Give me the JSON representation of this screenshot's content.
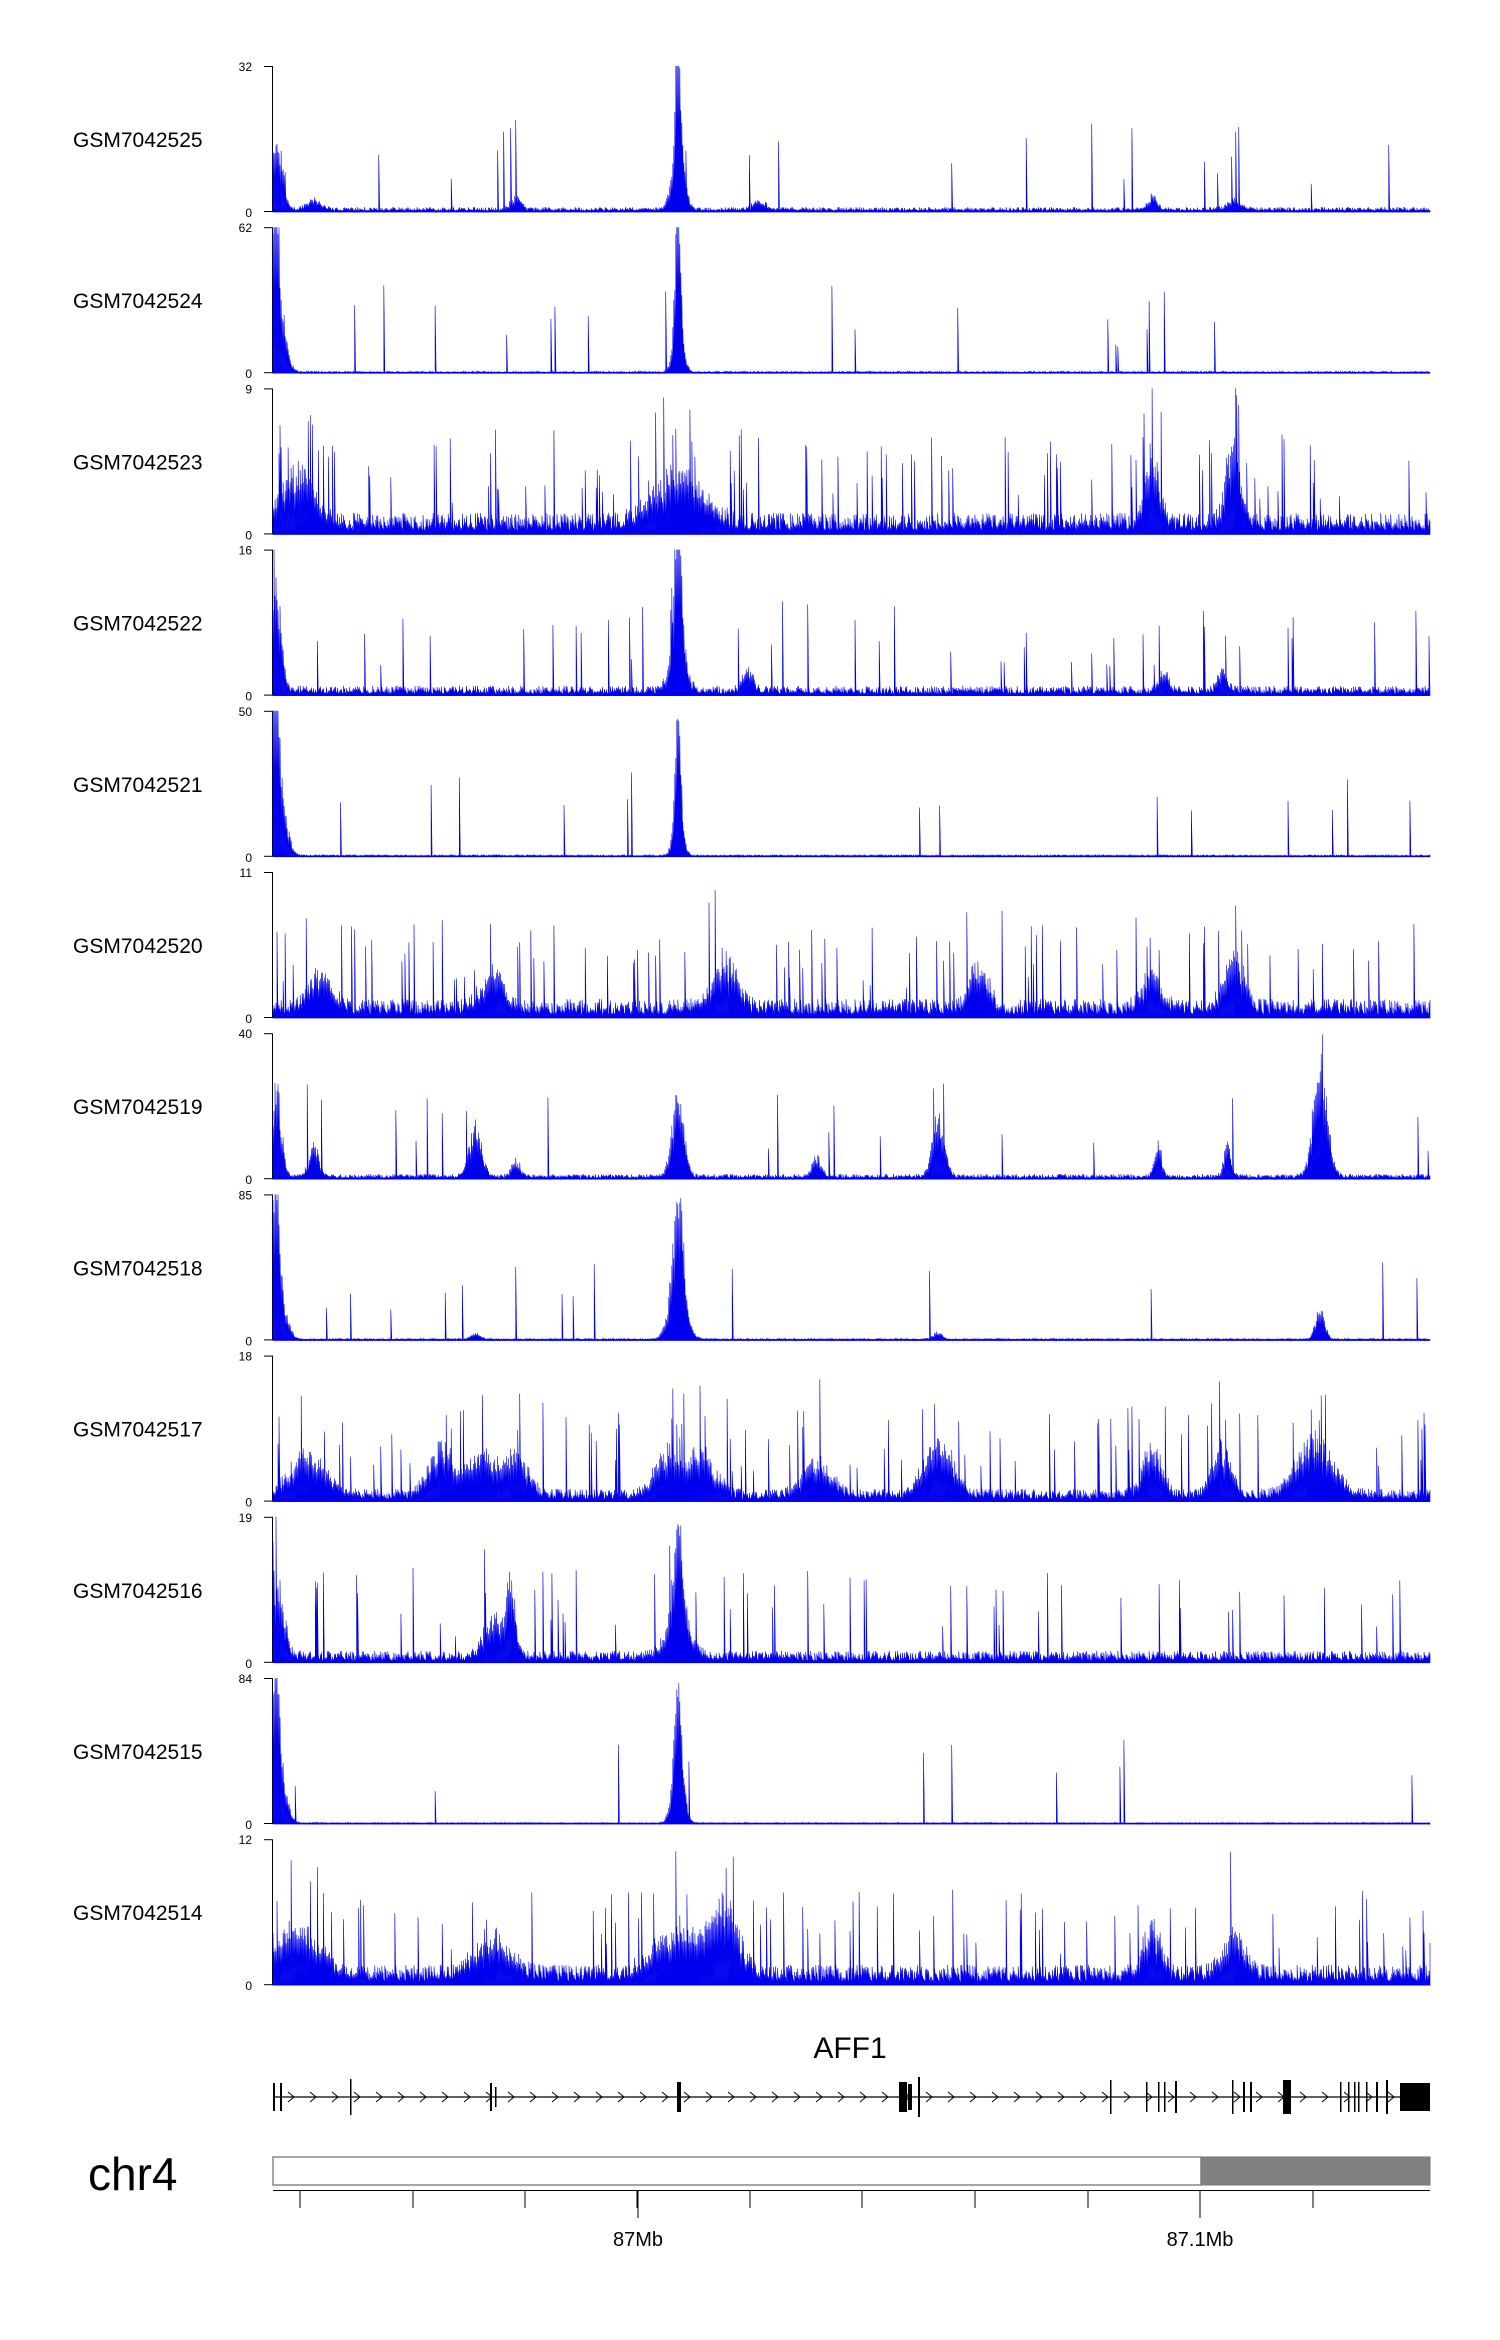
{
  "chart_data": {
    "type": "area",
    "colors": {
      "signal": "#0000ee",
      "gene": "#000000",
      "ideogram_band": "#808080"
    },
    "tracks": [
      {
        "name": "GSM7042525",
        "ymax": 32,
        "ymin": 0,
        "peaks": [
          [
            0.0,
            7.0,
            0.004
          ],
          [
            0.005,
            12.0,
            0.004
          ],
          [
            0.035,
            2.0,
            0.006
          ],
          [
            0.35,
            31.0,
            0.002
          ],
          [
            0.35,
            14.0,
            0.005
          ],
          [
            0.21,
            3.0,
            0.004
          ],
          [
            0.42,
            2.0,
            0.005
          ],
          [
            0.76,
            3.0,
            0.004
          ],
          [
            0.83,
            2.0,
            0.006
          ]
        ],
        "noise": 0.9,
        "spike": 0.015
      },
      {
        "name": "GSM7042524",
        "ymax": 62,
        "ymin": 0,
        "peaks": [
          [
            0.002,
            55.0,
            0.003
          ],
          [
            0.004,
            30.0,
            0.006
          ],
          [
            0.35,
            56.0,
            0.002
          ],
          [
            0.35,
            28.0,
            0.004
          ]
        ],
        "noise": 0.7,
        "spike": 0.01
      },
      {
        "name": "GSM7042523",
        "ymax": 9,
        "ymin": 0,
        "peaks": [
          [
            0.02,
            3.0,
            0.015
          ],
          [
            0.35,
            3.0,
            0.02
          ],
          [
            0.76,
            4.5,
            0.006
          ],
          [
            0.83,
            5.0,
            0.006
          ]
        ],
        "noise": 1.1,
        "spike": 0.09
      },
      {
        "name": "GSM7042522",
        "ymax": 16,
        "ymin": 0,
        "peaks": [
          [
            0.003,
            11.0,
            0.004
          ],
          [
            0.35,
            15.0,
            0.003
          ],
          [
            0.35,
            6.0,
            0.006
          ],
          [
            0.41,
            2.0,
            0.005
          ],
          [
            0.77,
            2.0,
            0.004
          ],
          [
            0.82,
            2.0,
            0.004
          ]
        ],
        "noise": 0.9,
        "spike": 0.04
      },
      {
        "name": "GSM7042521",
        "ymax": 50,
        "ymin": 0,
        "peaks": [
          [
            0.002,
            46.0,
            0.003
          ],
          [
            0.005,
            22.0,
            0.006
          ],
          [
            0.35,
            36.0,
            0.002
          ],
          [
            0.35,
            18.0,
            0.004
          ]
        ],
        "noise": 0.6,
        "spike": 0.01
      },
      {
        "name": "GSM7042520",
        "ymax": 11,
        "ymin": 0,
        "peaks": [
          [
            0.04,
            2.5,
            0.01
          ],
          [
            0.19,
            2.5,
            0.01
          ],
          [
            0.39,
            3.5,
            0.01
          ],
          [
            0.61,
            3.0,
            0.008
          ],
          [
            0.76,
            2.5,
            0.008
          ],
          [
            0.83,
            4.0,
            0.008
          ]
        ],
        "noise": 1.2,
        "spike": 0.08
      },
      {
        "name": "GSM7042519",
        "ymax": 40,
        "ymin": 0,
        "peaks": [
          [
            0.003,
            25.0,
            0.004
          ],
          [
            0.035,
            9.0,
            0.004
          ],
          [
            0.175,
            14.0,
            0.005
          ],
          [
            0.21,
            4.0,
            0.004
          ],
          [
            0.35,
            22.0,
            0.005
          ],
          [
            0.47,
            5.0,
            0.004
          ],
          [
            0.575,
            17.0,
            0.005
          ],
          [
            0.765,
            9.0,
            0.003
          ],
          [
            0.825,
            9.0,
            0.003
          ],
          [
            0.905,
            30.0,
            0.006
          ]
        ],
        "noise": 1.2,
        "spike": 0.02
      },
      {
        "name": "GSM7042518",
        "ymax": 85,
        "ymin": 0,
        "peaks": [
          [
            0.002,
            75.0,
            0.003
          ],
          [
            0.005,
            30.0,
            0.006
          ],
          [
            0.35,
            65.0,
            0.004
          ],
          [
            0.35,
            30.0,
            0.007
          ],
          [
            0.905,
            18.0,
            0.004
          ],
          [
            0.575,
            4.0,
            0.004
          ],
          [
            0.175,
            4.0,
            0.004
          ]
        ],
        "noise": 1.0,
        "spike": 0.01
      },
      {
        "name": "GSM7042517",
        "ymax": 18,
        "ymin": 0,
        "peaks": [
          [
            0.03,
            5.0,
            0.015
          ],
          [
            0.145,
            6.0,
            0.01
          ],
          [
            0.18,
            5.0,
            0.012
          ],
          [
            0.21,
            5.0,
            0.01
          ],
          [
            0.34,
            5.0,
            0.01
          ],
          [
            0.37,
            5.0,
            0.012
          ],
          [
            0.47,
            4.0,
            0.012
          ],
          [
            0.575,
            7.0,
            0.012
          ],
          [
            0.76,
            6.0,
            0.008
          ],
          [
            0.82,
            6.0,
            0.008
          ],
          [
            0.9,
            7.0,
            0.015
          ]
        ],
        "noise": 1.3,
        "spike": 0.07
      },
      {
        "name": "GSM7042516",
        "ymax": 19,
        "ymin": 0,
        "peaks": [
          [
            0.003,
            10.0,
            0.006
          ],
          [
            0.19,
            5.0,
            0.008
          ],
          [
            0.205,
            9.0,
            0.004
          ],
          [
            0.35,
            13.0,
            0.004
          ],
          [
            0.35,
            5.0,
            0.01
          ]
        ],
        "noise": 1.3,
        "spike": 0.04
      },
      {
        "name": "GSM7042515",
        "ymax": 84,
        "ymin": 0,
        "peaks": [
          [
            0.002,
            78.0,
            0.003
          ],
          [
            0.005,
            30.0,
            0.006
          ],
          [
            0.35,
            55.0,
            0.003
          ],
          [
            0.35,
            30.0,
            0.005
          ]
        ],
        "noise": 0.7,
        "spike": 0.01
      },
      {
        "name": "GSM7042514",
        "ymax": 12,
        "ymin": 0,
        "peaks": [
          [
            0.02,
            3.5,
            0.02
          ],
          [
            0.19,
            3.0,
            0.015
          ],
          [
            0.35,
            3.5,
            0.02
          ],
          [
            0.39,
            5.0,
            0.012
          ],
          [
            0.76,
            3.5,
            0.008
          ],
          [
            0.83,
            3.0,
            0.01
          ]
        ],
        "noise": 1.4,
        "spike": 0.09
      }
    ],
    "gene": {
      "name": "AFF1"
    },
    "chromosome": {
      "name": "chr4"
    },
    "x_axis": {
      "ticks": [
        "87Mb",
        "87.1Mb"
      ]
    }
  }
}
